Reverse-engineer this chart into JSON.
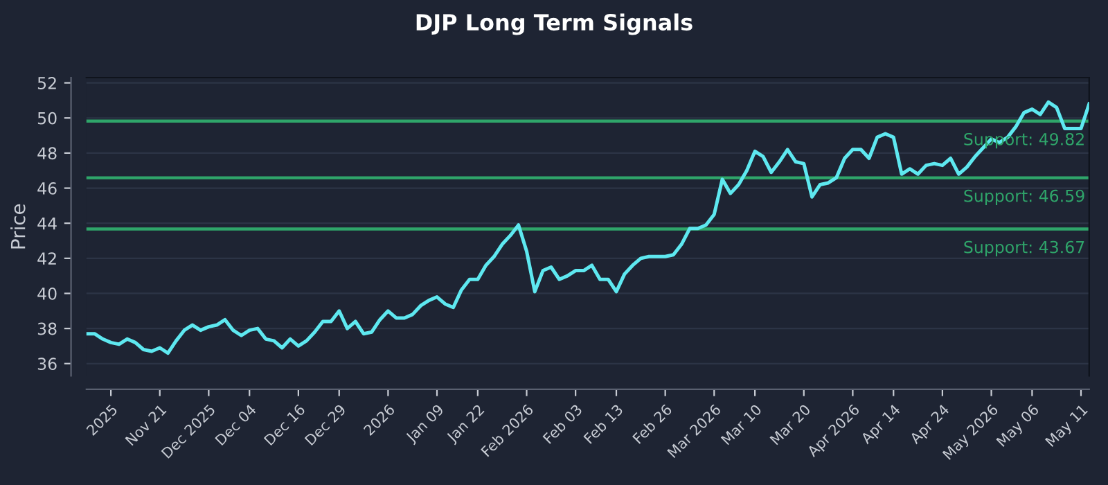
{
  "chart_data": {
    "type": "line",
    "title": "DJP Long Term Signals",
    "ylabel": "Price",
    "categories": [
      null,
      null,
      null,
      "2025",
      null,
      null,
      null,
      null,
      null,
      "Nov 21",
      null,
      null,
      null,
      null,
      null,
      "Dec 2025",
      null,
      null,
      null,
      null,
      "Dec 04",
      null,
      null,
      null,
      null,
      null,
      "Dec 16",
      null,
      null,
      null,
      null,
      "Dec 29",
      null,
      null,
      null,
      null,
      null,
      "2026",
      null,
      null,
      null,
      null,
      null,
      "Jan 09",
      null,
      null,
      null,
      null,
      "Jan 22",
      null,
      null,
      null,
      null,
      null,
      "Feb 2026",
      null,
      null,
      null,
      null,
      null,
      "Feb 03",
      null,
      null,
      null,
      null,
      "Feb 13",
      null,
      null,
      null,
      null,
      null,
      "Feb 26",
      null,
      null,
      null,
      null,
      null,
      "Mar 2026",
      null,
      null,
      null,
      null,
      "Mar 10",
      null,
      null,
      null,
      null,
      null,
      "Mar 20",
      null,
      null,
      null,
      null,
      null,
      "Apr 2026",
      null,
      null,
      null,
      null,
      "Apr 14",
      null,
      null,
      null,
      null,
      null,
      "Apr 24",
      null,
      null,
      null,
      null,
      null,
      "May 2026",
      null,
      null,
      null,
      null,
      "May 06",
      null,
      null,
      null,
      null,
      null,
      "May 11",
      null
    ],
    "series": [
      {
        "color": "#5ee8f0",
        "values": [
          37.7,
          37.7,
          37.4,
          37.2,
          37.1,
          37.4,
          37.2,
          36.8,
          36.7,
          36.9,
          36.6,
          37.3,
          37.9,
          38.2,
          37.9,
          38.1,
          38.2,
          38.5,
          37.9,
          37.6,
          37.9,
          38.0,
          37.4,
          37.3,
          36.9,
          37.4,
          37.0,
          37.3,
          37.8,
          38.4,
          38.4,
          39.0,
          38.0,
          38.4,
          37.7,
          37.8,
          38.5,
          39.0,
          38.6,
          38.6,
          38.8,
          39.3,
          39.6,
          39.8,
          39.4,
          39.2,
          40.2,
          40.8,
          40.8,
          41.6,
          42.1,
          42.8,
          43.3,
          43.9,
          42.4,
          40.1,
          41.3,
          41.5,
          40.8,
          41.0,
          41.3,
          41.3,
          41.6,
          40.8,
          40.8,
          40.1,
          41.1,
          41.6,
          42.0,
          42.1,
          42.1,
          42.1,
          42.2,
          42.8,
          43.7,
          43.7,
          43.9,
          44.5,
          46.5,
          45.7,
          46.2,
          47.0,
          48.1,
          47.8,
          46.9,
          47.5,
          48.2,
          47.5,
          47.4,
          45.5,
          46.2,
          46.3,
          46.6,
          47.7,
          48.2,
          48.2,
          47.7,
          48.9,
          49.1,
          48.9,
          46.8,
          47.1,
          46.8,
          47.3,
          47.4,
          47.3,
          47.7,
          46.8,
          47.2,
          47.8,
          48.3,
          48.8,
          48.6,
          48.9,
          49.5,
          50.3,
          50.5,
          50.2,
          50.9,
          50.6,
          49.4,
          49.4,
          49.4,
          50.8
        ]
      }
    ],
    "ylim": [
      35.3,
      52.3
    ],
    "yticks": [
      36,
      38,
      40,
      42,
      44,
      46,
      48,
      50,
      52
    ],
    "grid": "y",
    "marker": "none",
    "line_style": "solid",
    "ref_lines": [
      {
        "axis": "y",
        "value": 49.82,
        "label": "Support: 49.82",
        "color": "#2fa56a"
      },
      {
        "axis": "y",
        "value": 46.59,
        "label": "Support: 46.59",
        "color": "#2fa56a"
      },
      {
        "axis": "y",
        "value": 43.67,
        "label": "Support: 43.67",
        "color": "#2fa56a"
      }
    ]
  }
}
